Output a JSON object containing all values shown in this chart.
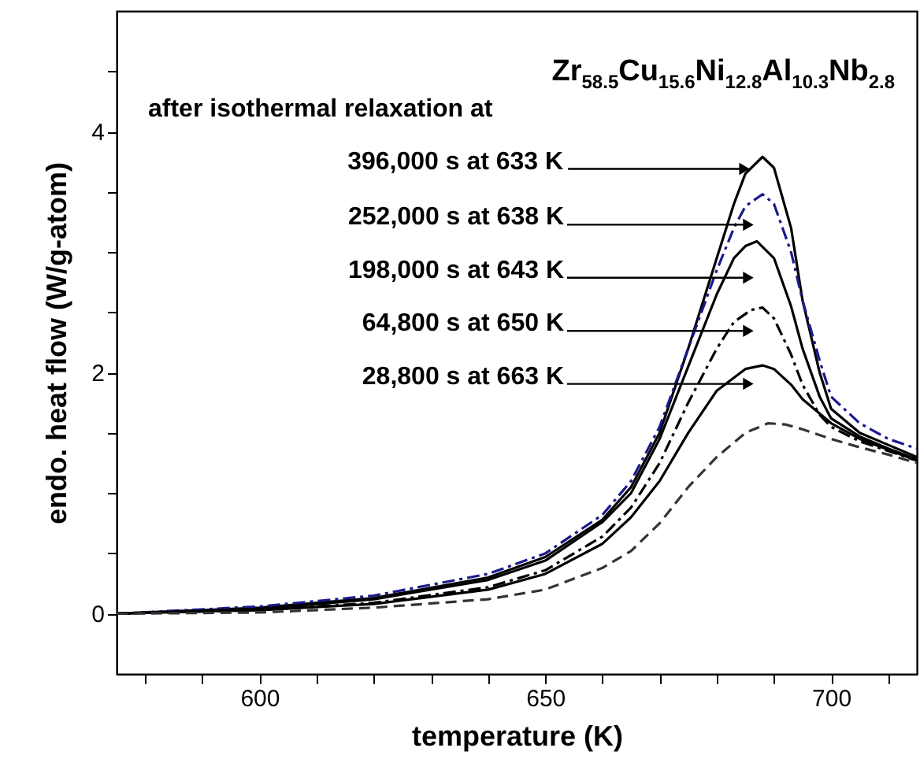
{
  "chart_data": {
    "type": "line",
    "xlabel": "temperature (K)",
    "ylabel": "endo. heat flow (W/g-atom)",
    "xlim": [
      575,
      715
    ],
    "ylim": [
      -0.5,
      5
    ],
    "xticks": [
      {
        "value": 580,
        "label": null
      },
      {
        "value": 590,
        "label": null
      },
      600,
      {
        "value": 610,
        "label": null
      },
      {
        "value": 620,
        "label": null
      },
      {
        "value": 630,
        "label": null
      },
      {
        "value": 640,
        "label": null
      },
      650,
      {
        "value": 660,
        "label": null
      },
      {
        "value": 670,
        "label": null
      },
      {
        "value": 680,
        "label": null
      },
      {
        "value": 690,
        "label": null
      },
      700,
      {
        "value": 710,
        "label": null
      }
    ],
    "yticks": [
      0,
      {
        "value": 0.5,
        "label": null
      },
      {
        "value": 1,
        "label": null
      },
      {
        "value": 1.5,
        "label": null
      },
      2,
      {
        "value": 2.5,
        "label": null
      },
      {
        "value": 3,
        "label": null
      },
      {
        "value": 3.5,
        "label": null
      },
      4,
      {
        "value": 4.5,
        "label": null
      }
    ],
    "grid": false,
    "marker": "none",
    "series": [
      {
        "color": "#000000",
        "line_style": "solid",
        "x": [
          575,
          600,
          620,
          640,
          650,
          660,
          665,
          670,
          675,
          680,
          683,
          685,
          688,
          690,
          693,
          695,
          698,
          700,
          705,
          710,
          715
        ],
        "values": [
          0,
          0.05,
          0.13,
          0.3,
          0.47,
          0.78,
          1.05,
          1.5,
          2.2,
          2.95,
          3.4,
          3.65,
          3.79,
          3.7,
          3.2,
          2.6,
          2.0,
          1.7,
          1.5,
          1.4,
          1.3
        ]
      },
      {
        "color": "#1a1a8c",
        "line_style": "dashdot",
        "x": [
          575,
          600,
          620,
          640,
          650,
          660,
          665,
          670,
          675,
          680,
          683,
          685,
          688,
          690,
          693,
          695,
          698,
          700,
          705,
          710,
          715
        ],
        "values": [
          0,
          0.06,
          0.15,
          0.33,
          0.5,
          0.82,
          1.1,
          1.55,
          2.2,
          2.85,
          3.2,
          3.38,
          3.48,
          3.4,
          3.0,
          2.6,
          2.1,
          1.8,
          1.58,
          1.45,
          1.37
        ]
      },
      {
        "color": "#000000",
        "line_style": "solid",
        "x": [
          575,
          600,
          620,
          640,
          650,
          660,
          665,
          670,
          675,
          680,
          683,
          685,
          687,
          690,
          693,
          695,
          698,
          700,
          705,
          710,
          715
        ],
        "values": [
          0,
          0.04,
          0.12,
          0.28,
          0.44,
          0.76,
          1.0,
          1.45,
          2.05,
          2.65,
          2.95,
          3.05,
          3.09,
          2.95,
          2.55,
          2.2,
          1.8,
          1.62,
          1.47,
          1.37,
          1.28
        ]
      },
      {
        "color": "#000000",
        "line_style": "dashdot",
        "x": [
          575,
          600,
          620,
          640,
          650,
          660,
          665,
          670,
          675,
          680,
          683,
          686,
          688,
          690,
          693,
          695,
          698,
          700,
          705,
          710,
          715
        ],
        "values": [
          0,
          0.03,
          0.09,
          0.22,
          0.36,
          0.64,
          0.88,
          1.25,
          1.75,
          2.2,
          2.42,
          2.52,
          2.54,
          2.45,
          2.15,
          1.9,
          1.65,
          1.55,
          1.43,
          1.35,
          1.27
        ]
      },
      {
        "color": "#000000",
        "line_style": "solid",
        "x": [
          575,
          600,
          620,
          640,
          650,
          660,
          665,
          670,
          675,
          680,
          685,
          688,
          690,
          693,
          695,
          700,
          705,
          710,
          715
        ],
        "values": [
          0,
          0.03,
          0.08,
          0.2,
          0.33,
          0.58,
          0.8,
          1.1,
          1.5,
          1.85,
          2.03,
          2.06,
          2.03,
          1.9,
          1.78,
          1.58,
          1.45,
          1.36,
          1.27
        ]
      },
      {
        "color": "#333333",
        "line_style": "dashed",
        "x": [
          575,
          600,
          620,
          640,
          650,
          660,
          665,
          670,
          675,
          680,
          685,
          689,
          692,
          695,
          700,
          705,
          710,
          715
        ],
        "values": [
          0,
          0.01,
          0.05,
          0.12,
          0.2,
          0.38,
          0.52,
          0.75,
          1.05,
          1.3,
          1.5,
          1.58,
          1.57,
          1.53,
          1.45,
          1.38,
          1.32,
          1.25
        ]
      }
    ],
    "annotations": [
      "Zr$_{58.5}$Cu$_{15.6}$Ni$_{12.8}$Al$_{10.3}$Nb$_{2.8}$",
      "after isothermal relaxation at",
      {
        "text": "396,000 s at 633 K",
        "x": 686.5,
        "y": 3.69
      },
      "252,000 s at 638 K",
      "198,000 s at 643 K",
      "64,800 s at 650 K",
      "28,800 s at 663 K"
    ]
  }
}
